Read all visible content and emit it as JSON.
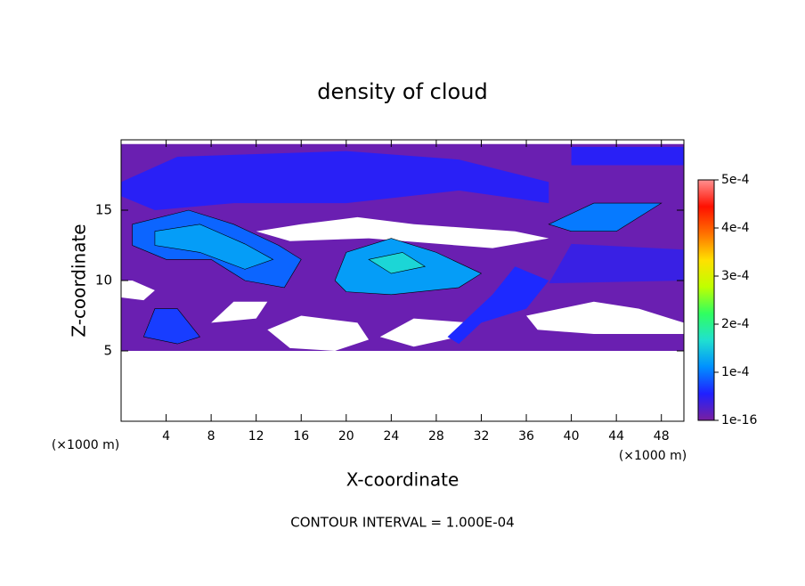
{
  "chart_data": {
    "type": "contour",
    "title": "density of cloud",
    "x_label": "X-coordinate",
    "y_label": "Z-coordinate",
    "x_unit_left": "(×1000 m)",
    "x_unit_right": "(×1000 m)",
    "footer": "CONTOUR INTERVAL = 1.000E-04",
    "xlim": [
      0,
      50
    ],
    "ylim": [
      0,
      20
    ],
    "xticks": [
      4,
      8,
      12,
      16,
      20,
      24,
      28,
      32,
      36,
      40,
      44,
      48
    ],
    "yticks": [
      5,
      10,
      15
    ],
    "colorbar": {
      "lim": [
        0,
        0.0005
      ],
      "colors": [
        "#7a1fa0",
        "#2020ff",
        "#0090ff",
        "#20e0d0",
        "#30ff60",
        "#c0ff00",
        "#ffe000",
        "#ff7000",
        "#ff1000",
        "#ff9090"
      ],
      "ticks": [
        {
          "value": 1e-16,
          "label": "1e-16"
        },
        {
          "value": 0.0001,
          "label": "1e-4"
        },
        {
          "value": 0.0002,
          "label": "2e-4"
        },
        {
          "value": 0.0003,
          "label": "3e-4"
        },
        {
          "value": 0.0004,
          "label": "4e-4"
        },
        {
          "value": 0.0005,
          "label": "5e-4"
        }
      ]
    },
    "regions": [
      {
        "level": 1e-05,
        "x": [
          0,
          50,
          50,
          0
        ],
        "z": [
          5,
          5,
          19.7,
          19.7
        ]
      },
      {
        "level": 0,
        "x": [
          13,
          16,
          21,
          22,
          19,
          15
        ],
        "z": [
          6.5,
          7.5,
          7,
          5.8,
          5,
          5.2
        ]
      },
      {
        "level": 0,
        "x": [
          23,
          26,
          31,
          30,
          26
        ],
        "z": [
          6,
          7.3,
          7,
          6,
          5.3
        ]
      },
      {
        "level": 0,
        "x": [
          36,
          42,
          46,
          50,
          50,
          42,
          37
        ],
        "z": [
          7.5,
          8.5,
          8,
          7,
          6.2,
          6.2,
          6.5
        ]
      },
      {
        "level": 0,
        "x": [
          12,
          16,
          21,
          26,
          35,
          38,
          33,
          22,
          15
        ],
        "z": [
          13.5,
          14,
          14.5,
          14,
          13.5,
          13,
          12.3,
          13,
          12.8
        ]
      },
      {
        "level": 0,
        "x": [
          0,
          2,
          3,
          1,
          0
        ],
        "z": [
          8.8,
          8.6,
          9.3,
          10,
          10
        ]
      },
      {
        "level": 0,
        "x": [
          8,
          10,
          13,
          12
        ],
        "z": [
          7,
          8.5,
          8.5,
          7.3
        ]
      },
      {
        "level": 5e-05,
        "x": [
          0,
          5,
          20,
          30,
          38,
          38,
          30,
          20,
          10,
          3,
          0
        ],
        "z": [
          17,
          18.8,
          19.2,
          18.6,
          17,
          15.5,
          16.4,
          15.5,
          15.5,
          15,
          16
        ]
      },
      {
        "level": 5e-05,
        "x": [
          40,
          50,
          50,
          40
        ],
        "z": [
          18.2,
          18.2,
          19.5,
          19.5
        ]
      },
      {
        "level": 4e-05,
        "x": [
          38,
          50,
          50,
          40
        ],
        "z": [
          9.8,
          10,
          12.2,
          12.6
        ]
      },
      {
        "level": 9e-05,
        "x": [
          1,
          6,
          10,
          14,
          16,
          14.5,
          11,
          8,
          4,
          1
        ],
        "z": [
          14,
          15,
          14,
          12.5,
          11.5,
          9.5,
          10,
          11.5,
          11.5,
          12.5
        ]
      },
      {
        "level": 0.00012,
        "x": [
          3,
          7,
          11,
          13.5,
          11,
          7,
          3
        ],
        "z": [
          13.5,
          14,
          12.6,
          11.5,
          10.8,
          12,
          12.5
        ]
      },
      {
        "level": 0.00012,
        "x": [
          19,
          20,
          24,
          28,
          32,
          30,
          24,
          20
        ],
        "z": [
          10,
          12,
          13,
          12,
          10.5,
          9.5,
          9,
          9.2
        ]
      },
      {
        "level": 0.00016,
        "x": [
          22,
          25,
          27,
          24
        ],
        "z": [
          11.5,
          12,
          11,
          10.5
        ]
      },
      {
        "level": 0.0001,
        "x": [
          38,
          42,
          48,
          44,
          40
        ],
        "z": [
          14,
          15.5,
          15.5,
          13.5,
          13.5
        ]
      },
      {
        "level": 7e-05,
        "x": [
          2,
          3,
          5,
          7,
          5
        ],
        "z": [
          6,
          8,
          8,
          6,
          5.5
        ]
      },
      {
        "level": 6e-05,
        "x": [
          29,
          33,
          35,
          38,
          36,
          32,
          30
        ],
        "z": [
          6,
          9,
          11,
          10,
          8,
          7,
          5.5
        ]
      }
    ]
  }
}
